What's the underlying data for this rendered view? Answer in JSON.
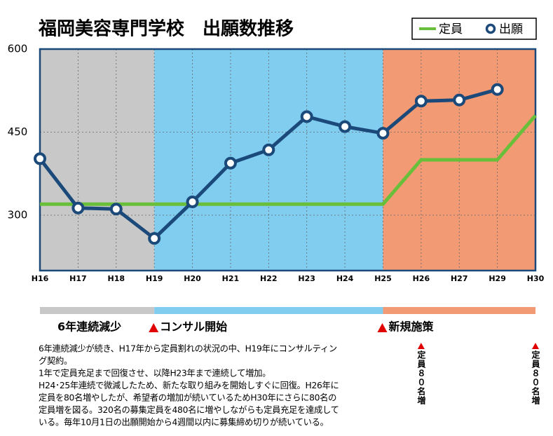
{
  "chart_data": {
    "type": "line",
    "title": "福岡美容専門学校　出願数推移",
    "categories": [
      "H16",
      "H17",
      "H18",
      "H19",
      "H20",
      "H21",
      "H22",
      "H23",
      "H24",
      "H25",
      "H26",
      "H27",
      "H29",
      "H30"
    ],
    "series": [
      {
        "name": "定員",
        "color": "#6abf3a",
        "markers": false,
        "values": [
          320,
          320,
          320,
          320,
          320,
          320,
          320,
          320,
          320,
          320,
          400,
          400,
          400,
          480
        ]
      },
      {
        "name": "出願",
        "color": "#1b4a7a",
        "markers": true,
        "values": [
          402,
          313,
          311,
          258,
          324,
          394,
          418,
          478,
          460,
          448,
          506,
          508,
          527,
          null
        ]
      }
    ],
    "ylim": [
      200,
      600
    ],
    "yticks": [
      300,
      450,
      600
    ],
    "grid": true,
    "phases": [
      {
        "label": "6年連続減少",
        "start": "H16",
        "end": "H19",
        "color": "#c8c8c8",
        "marker": false
      },
      {
        "label": "コンサル開始",
        "start": "H19",
        "end": "H25",
        "color": "#80cdf0",
        "marker": true
      },
      {
        "label": "新規施策",
        "start": "H25",
        "end": "H30",
        "color": "#f19a74",
        "marker": true
      }
    ],
    "annotations": [
      {
        "text": "定員８０名増",
        "at": "H26"
      },
      {
        "text": "定員８０名増",
        "at": "H30"
      }
    ],
    "notes": [
      "6年連続減少が続き、H17年から定員割れの状況の中、H19年にコンサルティン",
      "グ契約。",
      "1年で定員充足まで回復させ、以降H23年まで連続して増加。",
      "H24･25年連続で微減したため、新たな取り組みを開始しすぐに回復。H26年に",
      "定員を80名増やしたが、希望者の増加が続いているためH30年にさらに80名の",
      "定員増を図る。320名の募集定員を480名に増やしながらも定員充足を達成して",
      "いる。毎年10月1日の出願開始から4週間以内に募集締め切りが続いている。"
    ]
  }
}
